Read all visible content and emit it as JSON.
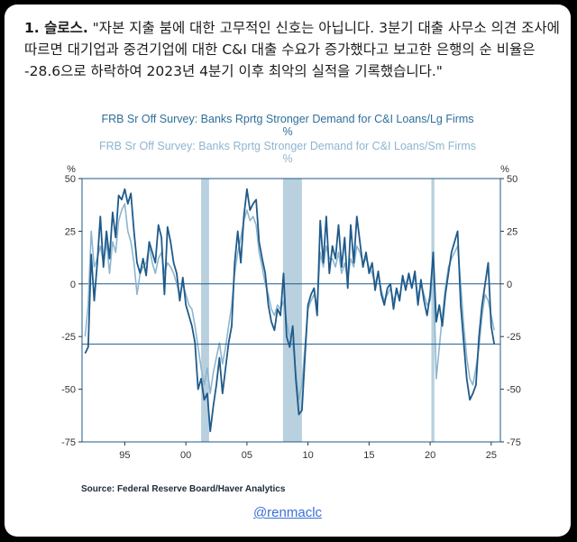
{
  "post": {
    "label": "1. 슬로스.",
    "text": " \"자본 지출 붐에 대한 고무적인 신호는 아닙니다. 3분기 대출 사무소 의견 조사에 따르면 대기업과 중견기업에 대한 C&I 대출 수요가 증가했다고 보고한 은행의 순 비율은 -28.6으로 하락하여 2023년 4분기 이후 최악의 실적을 기록했습니다.\""
  },
  "handle": "@renmaclc",
  "colors": {
    "series1": "#1f5a8a",
    "series2": "#8db6cf",
    "recession": "#b9d0de",
    "axis": "#1f5a8a"
  },
  "chart_data": {
    "type": "line",
    "title": "FRB Sr Off Survey: Banks Rprtg Stronger Demand for C&I Loans/Lg Firms",
    "title_unit": "%",
    "subtitle": "FRB Sr Off Survey: Banks Rprtg Stronger Demand for C&I Loans/Sm Firms",
    "subtitle_unit": "%",
    "ylabel_left": "%",
    "ylabel_right": "%",
    "ylim": [
      -75,
      50
    ],
    "yticks": [
      50,
      25,
      0,
      -25,
      -50,
      -75
    ],
    "xlim": [
      1991.5,
      2025.75
    ],
    "xticks": [
      {
        "v": 1995,
        "label": "95"
      },
      {
        "v": 2000,
        "label": "00"
      },
      {
        "v": 2005,
        "label": "05"
      },
      {
        "v": 2010,
        "label": "10"
      },
      {
        "v": 2015,
        "label": "15"
      },
      {
        "v": 2020,
        "label": "20"
      },
      {
        "v": 2025,
        "label": "25"
      }
    ],
    "reference_line": -28.6,
    "recessions": [
      [
        2001.25,
        2001.9
      ],
      [
        2007.95,
        2009.5
      ],
      [
        2020.1,
        2020.35
      ]
    ],
    "source": "Source:  Federal Reserve Board/Haver Analytics",
    "series": [
      {
        "name": "Lg Firms",
        "points": [
          [
            1991.75,
            -33
          ],
          [
            1992.0,
            -30
          ],
          [
            1992.25,
            14
          ],
          [
            1992.5,
            -8
          ],
          [
            1992.75,
            10
          ],
          [
            1993.0,
            32
          ],
          [
            1993.25,
            8
          ],
          [
            1993.5,
            25
          ],
          [
            1993.75,
            12
          ],
          [
            1994.0,
            34
          ],
          [
            1994.25,
            22
          ],
          [
            1994.5,
            42
          ],
          [
            1994.75,
            40
          ],
          [
            1995.0,
            45
          ],
          [
            1995.25,
            38
          ],
          [
            1995.5,
            43
          ],
          [
            1995.75,
            25
          ],
          [
            1996.0,
            10
          ],
          [
            1996.25,
            5
          ],
          [
            1996.5,
            12
          ],
          [
            1996.75,
            4
          ],
          [
            1997.0,
            20
          ],
          [
            1997.25,
            15
          ],
          [
            1997.5,
            10
          ],
          [
            1997.75,
            28
          ],
          [
            1998.0,
            22
          ],
          [
            1998.25,
            -5
          ],
          [
            1998.5,
            27
          ],
          [
            1998.75,
            20
          ],
          [
            1999.0,
            10
          ],
          [
            1999.25,
            5
          ],
          [
            1999.5,
            -8
          ],
          [
            1999.75,
            3
          ],
          [
            2000.0,
            -10
          ],
          [
            2000.25,
            -15
          ],
          [
            2000.5,
            -20
          ],
          [
            2000.75,
            -28
          ],
          [
            2001.0,
            -50
          ],
          [
            2001.25,
            -45
          ],
          [
            2001.5,
            -55
          ],
          [
            2001.75,
            -52
          ],
          [
            2002.0,
            -70
          ],
          [
            2002.25,
            -58
          ],
          [
            2002.5,
            -48
          ],
          [
            2002.75,
            -35
          ],
          [
            2003.0,
            -52
          ],
          [
            2003.25,
            -40
          ],
          [
            2003.5,
            -28
          ],
          [
            2003.75,
            -20
          ],
          [
            2004.0,
            10
          ],
          [
            2004.25,
            25
          ],
          [
            2004.5,
            10
          ],
          [
            2004.75,
            32
          ],
          [
            2005.0,
            45
          ],
          [
            2005.25,
            35
          ],
          [
            2005.5,
            38
          ],
          [
            2005.75,
            40
          ],
          [
            2006.0,
            20
          ],
          [
            2006.25,
            12
          ],
          [
            2006.5,
            5
          ],
          [
            2006.75,
            -10
          ],
          [
            2007.0,
            -18
          ],
          [
            2007.25,
            -22
          ],
          [
            2007.5,
            -12
          ],
          [
            2007.75,
            -15
          ],
          [
            2008.0,
            5
          ],
          [
            2008.25,
            -25
          ],
          [
            2008.5,
            -30
          ],
          [
            2008.75,
            -20
          ],
          [
            2009.0,
            -45
          ],
          [
            2009.25,
            -62
          ],
          [
            2009.5,
            -60
          ],
          [
            2009.75,
            -35
          ],
          [
            2010.0,
            -10
          ],
          [
            2010.25,
            -5
          ],
          [
            2010.5,
            -2
          ],
          [
            2010.75,
            -15
          ],
          [
            2011.0,
            30
          ],
          [
            2011.25,
            10
          ],
          [
            2011.5,
            32
          ],
          [
            2011.75,
            5
          ],
          [
            2012.0,
            18
          ],
          [
            2012.25,
            12
          ],
          [
            2012.5,
            28
          ],
          [
            2012.75,
            8
          ],
          [
            2013.0,
            22
          ],
          [
            2013.25,
            -2
          ],
          [
            2013.5,
            28
          ],
          [
            2013.75,
            10
          ],
          [
            2014.0,
            32
          ],
          [
            2014.25,
            20
          ],
          [
            2014.5,
            8
          ],
          [
            2014.75,
            15
          ],
          [
            2015.0,
            5
          ],
          [
            2015.25,
            10
          ],
          [
            2015.5,
            -3
          ],
          [
            2015.75,
            6
          ],
          [
            2016.0,
            -5
          ],
          [
            2016.25,
            -10
          ],
          [
            2016.5,
            -2
          ],
          [
            2016.75,
            0
          ],
          [
            2017.0,
            -12
          ],
          [
            2017.25,
            -2
          ],
          [
            2017.5,
            -8
          ],
          [
            2017.75,
            4
          ],
          [
            2018.0,
            -3
          ],
          [
            2018.25,
            5
          ],
          [
            2018.5,
            -2
          ],
          [
            2018.75,
            6
          ],
          [
            2019.0,
            -10
          ],
          [
            2019.25,
            2
          ],
          [
            2019.5,
            -8
          ],
          [
            2019.75,
            -15
          ],
          [
            2020.0,
            -5
          ],
          [
            2020.25,
            15
          ],
          [
            2020.5,
            -18
          ],
          [
            2020.75,
            -10
          ],
          [
            2021.0,
            -20
          ],
          [
            2021.25,
            -5
          ],
          [
            2021.5,
            5
          ],
          [
            2021.75,
            15
          ],
          [
            2022.0,
            20
          ],
          [
            2022.25,
            25
          ],
          [
            2022.5,
            -10
          ],
          [
            2022.75,
            -28
          ],
          [
            2023.0,
            -45
          ],
          [
            2023.25,
            -55
          ],
          [
            2023.5,
            -52
          ],
          [
            2023.75,
            -48
          ],
          [
            2024.0,
            -25
          ],
          [
            2024.25,
            -10
          ],
          [
            2024.5,
            0
          ],
          [
            2024.75,
            10
          ],
          [
            2025.0,
            -20
          ],
          [
            2025.25,
            -28.6
          ]
        ]
      },
      {
        "name": "Sm Firms",
        "points": [
          [
            1991.75,
            -25
          ],
          [
            1992.0,
            -10
          ],
          [
            1992.25,
            25
          ],
          [
            1992.5,
            8
          ],
          [
            1992.75,
            12
          ],
          [
            1993.0,
            18
          ],
          [
            1993.25,
            10
          ],
          [
            1993.5,
            20
          ],
          [
            1993.75,
            5
          ],
          [
            1994.0,
            20
          ],
          [
            1994.25,
            15
          ],
          [
            1994.5,
            30
          ],
          [
            1994.75,
            35
          ],
          [
            1995.0,
            38
          ],
          [
            1995.25,
            25
          ],
          [
            1995.5,
            20
          ],
          [
            1995.75,
            10
          ],
          [
            1996.0,
            -5
          ],
          [
            1996.25,
            5
          ],
          [
            1996.5,
            8
          ],
          [
            1996.75,
            10
          ],
          [
            1997.0,
            18
          ],
          [
            1997.25,
            10
          ],
          [
            1997.5,
            5
          ],
          [
            1997.75,
            12
          ],
          [
            1998.0,
            15
          ],
          [
            1998.25,
            5
          ],
          [
            1998.5,
            10
          ],
          [
            1998.75,
            8
          ],
          [
            1999.0,
            5
          ],
          [
            1999.25,
            0
          ],
          [
            1999.5,
            -5
          ],
          [
            1999.75,
            0
          ],
          [
            2000.0,
            -5
          ],
          [
            2000.25,
            -10
          ],
          [
            2000.5,
            -12
          ],
          [
            2000.75,
            -20
          ],
          [
            2001.0,
            -30
          ],
          [
            2001.25,
            -40
          ],
          [
            2001.5,
            -48
          ],
          [
            2001.75,
            -40
          ],
          [
            2002.0,
            -52
          ],
          [
            2002.25,
            -42
          ],
          [
            2002.5,
            -35
          ],
          [
            2002.75,
            -28
          ],
          [
            2003.0,
            -38
          ],
          [
            2003.25,
            -30
          ],
          [
            2003.5,
            -20
          ],
          [
            2003.75,
            -10
          ],
          [
            2004.0,
            5
          ],
          [
            2004.25,
            15
          ],
          [
            2004.5,
            22
          ],
          [
            2004.75,
            30
          ],
          [
            2005.0,
            35
          ],
          [
            2005.25,
            30
          ],
          [
            2005.5,
            32
          ],
          [
            2005.75,
            28
          ],
          [
            2006.0,
            15
          ],
          [
            2006.25,
            8
          ],
          [
            2006.5,
            0
          ],
          [
            2006.75,
            -5
          ],
          [
            2007.0,
            -12
          ],
          [
            2007.25,
            -15
          ],
          [
            2007.5,
            -10
          ],
          [
            2007.75,
            -12
          ],
          [
            2008.0,
            -8
          ],
          [
            2008.25,
            -18
          ],
          [
            2008.5,
            -25
          ],
          [
            2008.75,
            -28
          ],
          [
            2009.0,
            -42
          ],
          [
            2009.25,
            -55
          ],
          [
            2009.5,
            -48
          ],
          [
            2009.75,
            -30
          ],
          [
            2010.0,
            -12
          ],
          [
            2010.25,
            -8
          ],
          [
            2010.5,
            -5
          ],
          [
            2010.75,
            -10
          ],
          [
            2011.0,
            15
          ],
          [
            2011.25,
            8
          ],
          [
            2011.5,
            18
          ],
          [
            2011.75,
            12
          ],
          [
            2012.0,
            12
          ],
          [
            2012.25,
            8
          ],
          [
            2012.5,
            15
          ],
          [
            2012.75,
            5
          ],
          [
            2013.0,
            10
          ],
          [
            2013.25,
            2
          ],
          [
            2013.5,
            12
          ],
          [
            2013.75,
            8
          ],
          [
            2014.0,
            18
          ],
          [
            2014.25,
            15
          ],
          [
            2014.5,
            10
          ],
          [
            2014.75,
            12
          ],
          [
            2015.0,
            8
          ],
          [
            2015.25,
            5
          ],
          [
            2015.5,
            0
          ],
          [
            2015.75,
            5
          ],
          [
            2016.0,
            -3
          ],
          [
            2016.25,
            -8
          ],
          [
            2016.5,
            -5
          ],
          [
            2016.75,
            -2
          ],
          [
            2017.0,
            -8
          ],
          [
            2017.25,
            -4
          ],
          [
            2017.5,
            -6
          ],
          [
            2017.75,
            2
          ],
          [
            2018.0,
            0
          ],
          [
            2018.25,
            3
          ],
          [
            2018.5,
            -2
          ],
          [
            2018.75,
            4
          ],
          [
            2019.0,
            -6
          ],
          [
            2019.25,
            0
          ],
          [
            2019.5,
            -5
          ],
          [
            2019.75,
            -10
          ],
          [
            2020.0,
            -8
          ],
          [
            2020.25,
            10
          ],
          [
            2020.5,
            -45
          ],
          [
            2020.75,
            -30
          ],
          [
            2021.0,
            -15
          ],
          [
            2021.25,
            -2
          ],
          [
            2021.5,
            8
          ],
          [
            2021.75,
            12
          ],
          [
            2022.0,
            15
          ],
          [
            2022.25,
            18
          ],
          [
            2022.5,
            0
          ],
          [
            2022.75,
            -20
          ],
          [
            2023.0,
            -35
          ],
          [
            2023.25,
            -45
          ],
          [
            2023.5,
            -48
          ],
          [
            2023.75,
            -40
          ],
          [
            2024.0,
            -30
          ],
          [
            2024.25,
            -15
          ],
          [
            2024.5,
            -5
          ],
          [
            2024.75,
            -8
          ],
          [
            2025.0,
            -15
          ],
          [
            2025.25,
            -22
          ]
        ]
      }
    ]
  }
}
